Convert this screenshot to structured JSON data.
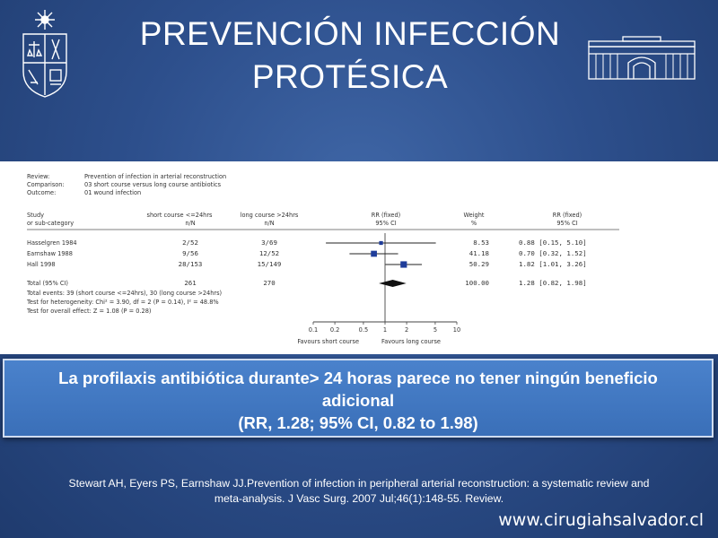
{
  "slide": {
    "title_line1": "PREVENCIÓN INFECCIÓN",
    "title_line2": "PROTÉSICA",
    "highlight_line1": "La profilaxis antibiótica durante> 24 horas parece no tener ningún beneficio",
    "highlight_line2": "adicional",
    "highlight_line3": "(RR, 1.28; 95% CI, 0.82 to 1.98)",
    "citation_line1": "Stewart AH, Eyers PS, Earnshaw JJ.Prevention of infection in peripheral arterial reconstruction: a systematic review and",
    "citation_line2": "meta-analysis. J Vasc Surg. 2007 Jul;46(1):148-55. Review.",
    "website": "www.cirugiahsalvador.cl",
    "colors": {
      "background": "#2d4f8c",
      "highlight_box": "#3a6fb8",
      "marker": "#1f3d9a"
    },
    "icons": [
      "university-seal-icon",
      "hospital-building-icon"
    ]
  },
  "chart_data": {
    "type": "forest",
    "header": {
      "review_label": "Review:",
      "review_value": "Prevention of infection in arterial reconstruction",
      "comparison_label": "Comparison:",
      "comparison_value": "03 short course versus long course antibiotics",
      "outcome_label": "Outcome:",
      "outcome_value": "01 wound infection"
    },
    "columns": {
      "study_1": "Study",
      "study_2": "or sub-category",
      "short_1": "short course <=24hrs",
      "short_2": "n/N",
      "long_1": "long course >24hrs",
      "long_2": "n/N",
      "rr_1": "RR (fixed)",
      "rr_2": "95% CI",
      "weight_1": "Weight",
      "weight_2": "%",
      "rrv_1": "RR (fixed)",
      "rrv_2": "95% CI"
    },
    "studies": [
      {
        "name": "Hasselgren 1984",
        "short": "2/52",
        "long": "3/69",
        "weight": "8.53",
        "rr_text": "0.88 [0.15, 5.10]",
        "rr": 0.88,
        "lo": 0.15,
        "hi": 5.1
      },
      {
        "name": "Earnshaw 1988",
        "short": "9/56",
        "long": "12/52",
        "weight": "41.18",
        "rr_text": "0.70 [0.32, 1.52]",
        "rr": 0.7,
        "lo": 0.32,
        "hi": 1.52
      },
      {
        "name": "Hall 1998",
        "short": "28/153",
        "long": "15/149",
        "weight": "50.29",
        "rr_text": "1.82 [1.01, 3.26]",
        "rr": 1.82,
        "lo": 1.01,
        "hi": 3.26
      }
    ],
    "total": {
      "name": "Total (95% CI)",
      "short": "261",
      "long": "270",
      "weight": "100.00",
      "rr_text": "1.28 [0.82, 1.98]",
      "rr": 1.28,
      "lo": 0.82,
      "hi": 1.98
    },
    "notes": [
      "Total events: 39 (short course <=24hrs), 30 (long course >24hrs)",
      "Test for heterogeneity: Chi² = 3.90, df = 2 (P = 0.14), I² = 48.8%",
      "Test for overall effect: Z = 1.08 (P = 0.28)"
    ],
    "x_scale": "log",
    "xlim": [
      0.1,
      10
    ],
    "x_ticks": [
      "0.1",
      "0.2",
      "0.5",
      "1",
      "2",
      "5",
      "10"
    ],
    "x_tick_values": [
      0.1,
      0.2,
      0.5,
      1,
      2,
      5,
      10
    ],
    "favours_left": "Favours short course",
    "favours_right": "Favours long course"
  }
}
